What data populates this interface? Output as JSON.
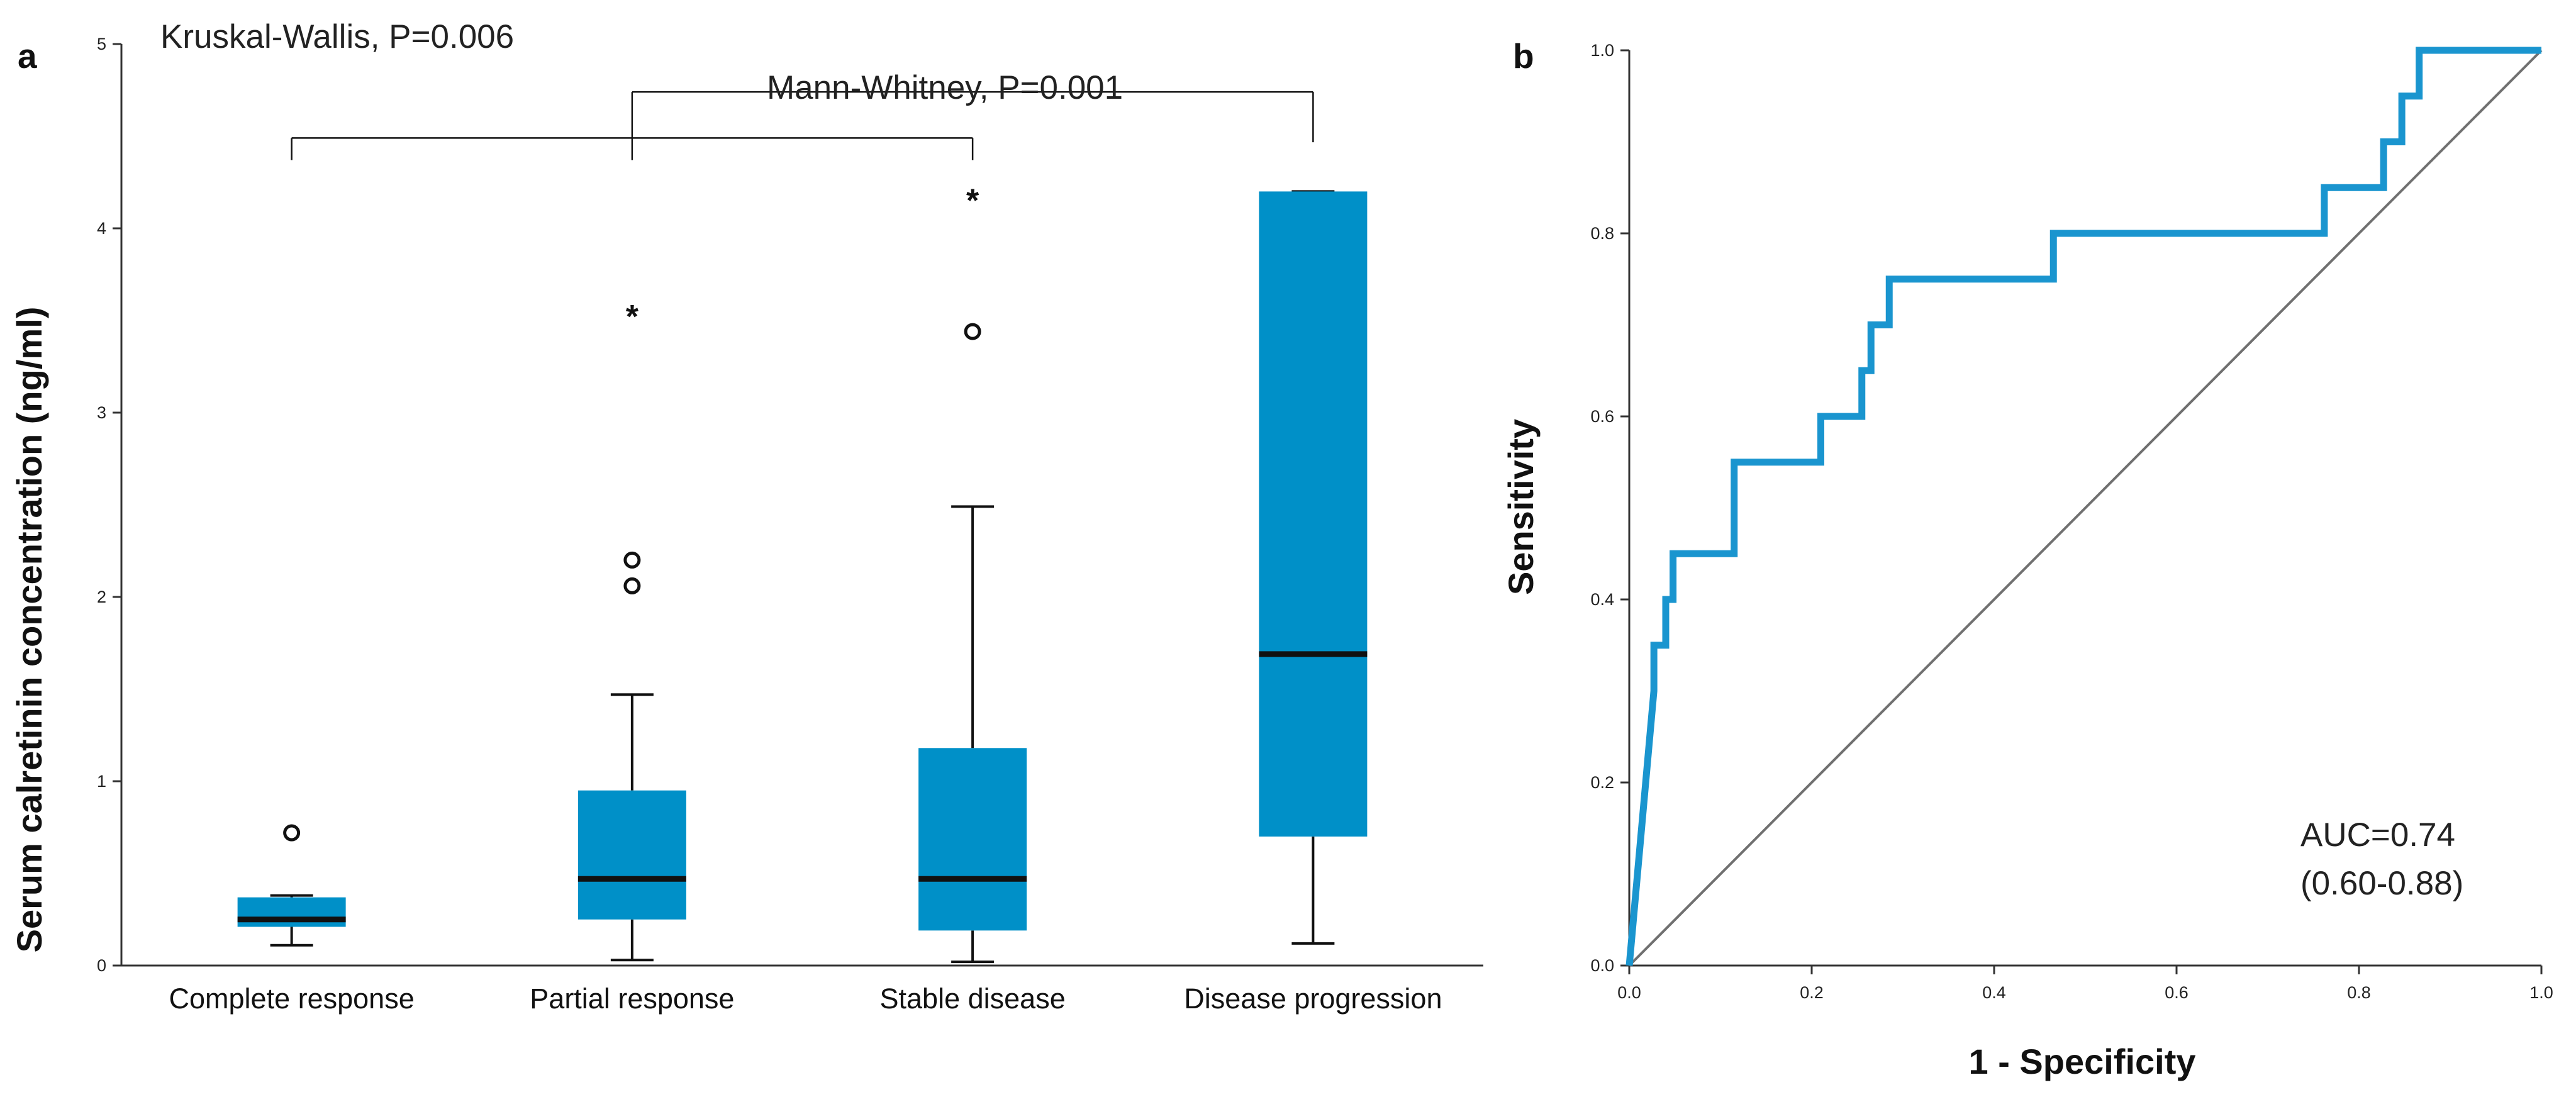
{
  "panels": {
    "a": {
      "letter": "a"
    },
    "b": {
      "letter": "b"
    }
  },
  "chart_data": [
    {
      "type": "boxplot",
      "panel": "a",
      "ylabel": "Serum calretinin concentration (ng/ml)",
      "xlabel": "",
      "ylim": [
        0,
        5
      ],
      "yticks": [
        0,
        1,
        2,
        3,
        4,
        5
      ],
      "categories": [
        "Complete response",
        "Partial response",
        "Stable disease",
        "Disease progression"
      ],
      "color": "#0090c8",
      "boxes": [
        {
          "category": "Complete response",
          "whisker_low": 0.11,
          "q1": 0.21,
          "median": 0.25,
          "q3": 0.37,
          "whisker_high": 0.38,
          "outliers": [
            {
              "value": 0.72,
              "marker": "o"
            }
          ]
        },
        {
          "category": "Partial response",
          "whisker_low": 0.03,
          "q1": 0.25,
          "median": 0.47,
          "q3": 0.95,
          "whisker_high": 1.47,
          "outliers": [
            {
              "value": 2.06,
              "marker": "o"
            },
            {
              "value": 2.2,
              "marker": "o"
            },
            {
              "value": 3.55,
              "marker": "*"
            }
          ]
        },
        {
          "category": "Stable disease",
          "whisker_low": 0.02,
          "q1": 0.19,
          "median": 0.47,
          "q3": 1.18,
          "whisker_high": 2.49,
          "outliers": [
            {
              "value": 3.44,
              "marker": "o"
            },
            {
              "value": 4.18,
              "marker": "*"
            }
          ]
        },
        {
          "category": "Disease progression",
          "whisker_low": 0.12,
          "q1": 0.7,
          "median": 1.69,
          "q3": 4.2,
          "whisker_high": 4.2,
          "outliers": []
        }
      ],
      "annotations": {
        "kruskal": "Kruskal-Wallis, P=0.006",
        "mann": "Mann-Whitney, P=0.001"
      },
      "brackets": {
        "lower": {
          "level": 4.49,
          "groups": [
            "Complete response",
            "Partial response",
            "Stable disease"
          ]
        },
        "upper": {
          "level": 4.74,
          "from": "Partial response",
          "to": "Disease progression"
        }
      }
    },
    {
      "type": "line",
      "panel": "b",
      "title": "",
      "xlabel": "1 - Specificity",
      "ylabel": "Sensitivity",
      "xlim": [
        0,
        1
      ],
      "ylim": [
        0,
        1
      ],
      "xticks": [
        "0.0",
        "0.2",
        "0.4",
        "0.6",
        "0.8",
        "1.0"
      ],
      "yticks": [
        "0.0",
        "0.2",
        "0.4",
        "0.6",
        "0.8",
        "1.0"
      ],
      "series": [
        {
          "name": "ROC curve",
          "color": "#1a95cf",
          "x": [
            0,
            0.027,
            0.027,
            0.04,
            0.04,
            0.048,
            0.048,
            0.115,
            0.115,
            0.21,
            0.21,
            0.255,
            0.255,
            0.265,
            0.265,
            0.285,
            0.285,
            0.465,
            0.465,
            0.762,
            0.762,
            0.827,
            0.827,
            0.847,
            0.847,
            0.866,
            0.866,
            1.0
          ],
          "y": [
            0,
            0.3,
            0.35,
            0.35,
            0.4,
            0.4,
            0.45,
            0.45,
            0.55,
            0.55,
            0.6,
            0.6,
            0.65,
            0.65,
            0.7,
            0.7,
            0.75,
            0.75,
            0.8,
            0.8,
            0.85,
            0.85,
            0.9,
            0.9,
            0.95,
            0.95,
            1.0,
            1.0
          ]
        },
        {
          "name": "Reference line",
          "color": "#707070",
          "x": [
            0,
            1
          ],
          "y": [
            0,
            1
          ]
        }
      ],
      "annotations": {
        "auc": "AUC=0.74",
        "ci": "(0.60-0.88)"
      }
    }
  ]
}
